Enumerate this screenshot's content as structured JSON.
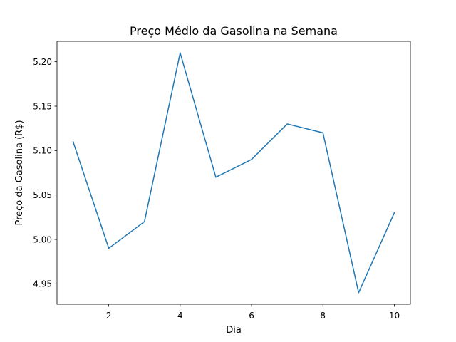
{
  "chart_data": {
    "type": "line",
    "title": "Preço Médio da Gasolina na Semana",
    "xlabel": "Dia",
    "ylabel": "Preço da Gasolina (R$)",
    "x": [
      1,
      2,
      3,
      4,
      5,
      6,
      7,
      8,
      9,
      10
    ],
    "series": [
      {
        "values": [
          5.11,
          4.99,
          5.02,
          5.21,
          5.07,
          5.09,
          5.13,
          5.12,
          4.94,
          5.03
        ]
      }
    ],
    "xlim": [
      0.55,
      10.45
    ],
    "ylim": [
      4.927,
      5.223
    ],
    "xticks": [
      2,
      4,
      6,
      8,
      10
    ],
    "xtick_labels": [
      "2",
      "4",
      "6",
      "8",
      "10"
    ],
    "yticks": [
      4.95,
      5.0,
      5.05,
      5.1,
      5.15,
      5.2
    ],
    "ytick_labels": [
      "4.95",
      "5.00",
      "5.05",
      "5.10",
      "5.15",
      "5.20"
    ],
    "grid": false,
    "line_color": "#1f77b4"
  }
}
